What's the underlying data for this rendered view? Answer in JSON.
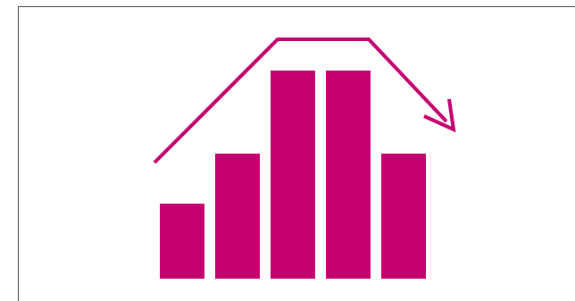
{
  "icon": {
    "name": "bar-chart-trend-down-icon",
    "color": "#c5006f",
    "bar_levels": [
      0.36,
      0.6,
      1.0,
      1.0,
      0.6
    ],
    "trend": "rise-then-fall"
  }
}
